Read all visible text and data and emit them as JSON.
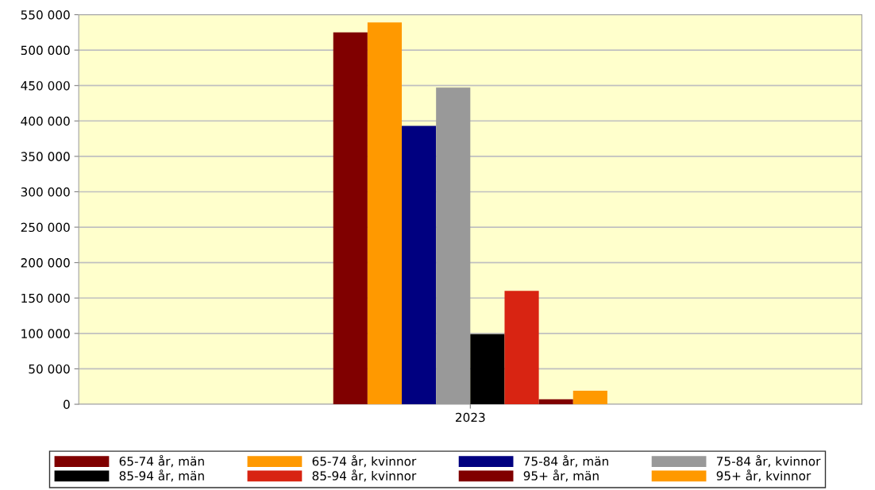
{
  "chart_data": {
    "type": "bar",
    "categories": [
      "2023"
    ],
    "series": [
      {
        "name": "65-74 år, män",
        "color": "#800000",
        "values": [
          525000
        ]
      },
      {
        "name": "65-74 år, kvinnor",
        "color": "#ff9900",
        "values": [
          539000
        ]
      },
      {
        "name": "75-84 år, män",
        "color": "#000080",
        "values": [
          393000
        ]
      },
      {
        "name": "75-84 år, kvinnor",
        "color": "#999999",
        "values": [
          447000
        ]
      },
      {
        "name": "85-94 år, män",
        "color": "#000000",
        "values": [
          99000
        ]
      },
      {
        "name": "85-94 år, kvinnor",
        "color": "#d82412",
        "values": [
          160000
        ]
      },
      {
        "name": "95+ år, män",
        "color": "#800000",
        "values": [
          7000
        ]
      },
      {
        "name": "95+ år, kvinnor",
        "color": "#ff9900",
        "values": [
          19000
        ]
      }
    ],
    "ylim": [
      0,
      550000
    ],
    "yticks": [
      {
        "value": 0,
        "label": "0"
      },
      {
        "value": 50000,
        "label": "50 000"
      },
      {
        "value": 100000,
        "label": "100 000"
      },
      {
        "value": 150000,
        "label": "150 000"
      },
      {
        "value": 200000,
        "label": "200 000"
      },
      {
        "value": 250000,
        "label": "250 000"
      },
      {
        "value": 300000,
        "label": "300 000"
      },
      {
        "value": 350000,
        "label": "350 000"
      },
      {
        "value": 400000,
        "label": "400 000"
      },
      {
        "value": 450000,
        "label": "450 000"
      },
      {
        "value": 500000,
        "label": "500 000"
      },
      {
        "value": 550000,
        "label": "550 000"
      }
    ],
    "grid": "y",
    "legend": "bottom"
  }
}
